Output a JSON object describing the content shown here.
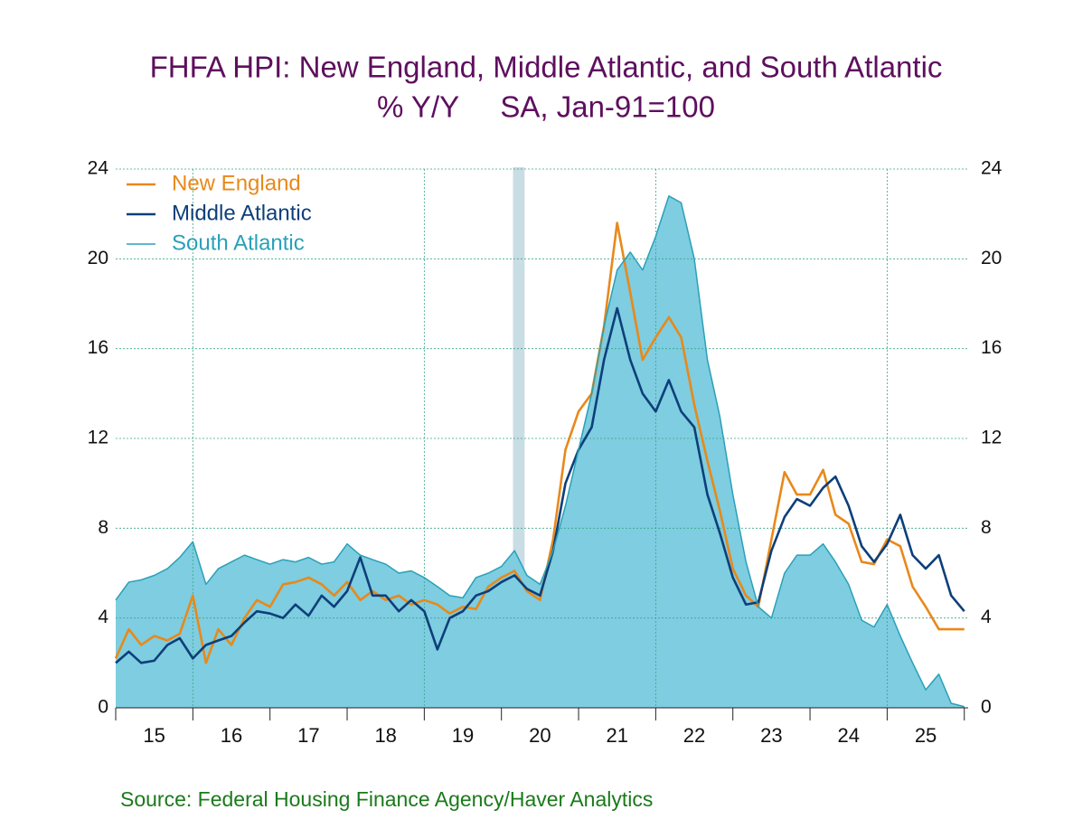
{
  "chart_data": {
    "type": "line",
    "title": "FHFA HPI: New England, Middle Atlantic, and South Atlantic",
    "subtitle": "% Y/Y     SA, Jan-91=100",
    "source": "Source:  Federal Housing Finance Agency/Haver Analytics",
    "x": [
      2015,
      2015.17,
      2015.33,
      2015.5,
      2015.67,
      2015.83,
      2016,
      2016.17,
      2016.33,
      2016.5,
      2016.67,
      2016.83,
      2017,
      2017.17,
      2017.33,
      2017.5,
      2017.67,
      2017.83,
      2018,
      2018.17,
      2018.33,
      2018.5,
      2018.67,
      2018.83,
      2019,
      2019.17,
      2019.33,
      2019.5,
      2019.67,
      2019.83,
      2020,
      2020.17,
      2020.33,
      2020.5,
      2020.67,
      2020.83,
      2021,
      2021.17,
      2021.33,
      2021.5,
      2021.67,
      2021.83,
      2022,
      2022.17,
      2022.33,
      2022.5,
      2022.67,
      2022.83,
      2023,
      2023.17,
      2023.33,
      2023.5,
      2023.67,
      2023.83,
      2024,
      2024.17,
      2024.33,
      2024.5,
      2024.67,
      2024.83,
      2025,
      2025.17,
      2025.33,
      2025.5,
      2025.67,
      2025.83,
      2026
    ],
    "series": [
      {
        "name": "New England",
        "color": "#e8891a",
        "values": [
          2.2,
          3.5,
          2.8,
          3.2,
          3.0,
          3.3,
          5.0,
          2.0,
          3.5,
          2.8,
          4.0,
          4.8,
          4.5,
          5.5,
          5.6,
          5.8,
          5.5,
          5.0,
          5.6,
          4.8,
          5.2,
          4.8,
          5.0,
          4.6,
          4.8,
          4.6,
          4.2,
          4.5,
          4.4,
          5.4,
          5.8,
          6.1,
          5.2,
          4.8,
          7.5,
          11.5,
          13.2,
          14.0,
          17.0,
          21.6,
          18.5,
          15.5,
          16.5,
          17.4,
          16.5,
          13.5,
          11.0,
          8.8,
          6.2,
          5.0,
          4.5,
          7.5,
          10.5,
          9.5,
          9.5,
          10.6,
          8.6,
          8.2,
          6.5,
          6.4,
          7.5,
          7.2,
          5.4,
          4.5,
          3.5,
          3.5,
          3.5
        ]
      },
      {
        "name": "Middle Atlantic",
        "color": "#0d3f7a",
        "values": [
          2.0,
          2.5,
          2.0,
          2.1,
          2.8,
          3.1,
          2.2,
          2.8,
          3.0,
          3.2,
          3.8,
          4.3,
          4.2,
          4.0,
          4.6,
          4.1,
          5.0,
          4.5,
          5.2,
          6.7,
          5.0,
          5.0,
          4.3,
          4.8,
          4.3,
          2.6,
          4.0,
          4.3,
          5.0,
          5.2,
          5.6,
          5.9,
          5.3,
          5.0,
          7.0,
          10.0,
          11.5,
          12.5,
          15.5,
          17.8,
          15.5,
          14.0,
          13.2,
          14.6,
          13.2,
          12.5,
          9.5,
          7.8,
          5.8,
          4.6,
          4.7,
          7.0,
          8.5,
          9.3,
          9.0,
          9.8,
          10.3,
          9.0,
          7.2,
          6.5,
          7.3,
          8.6,
          6.8,
          6.2,
          6.8,
          5.0,
          4.3
        ]
      },
      {
        "name": "South Atlantic",
        "color": "#2aa0b8",
        "fill": "#7ecde0",
        "values": [
          4.8,
          5.6,
          5.7,
          5.9,
          6.2,
          6.7,
          7.4,
          5.5,
          6.2,
          6.5,
          6.8,
          6.6,
          6.4,
          6.6,
          6.5,
          6.7,
          6.4,
          6.5,
          7.3,
          6.8,
          6.6,
          6.4,
          6.0,
          6.1,
          5.8,
          5.4,
          5.0,
          4.9,
          5.8,
          6.0,
          6.3,
          7.0,
          5.9,
          5.5,
          7.0,
          9.0,
          11.5,
          14.0,
          17.0,
          19.5,
          20.3,
          19.5,
          21.0,
          22.8,
          22.5,
          20.0,
          15.5,
          13.0,
          9.5,
          6.5,
          4.5,
          4.0,
          6.0,
          6.8,
          6.8,
          7.3,
          6.5,
          5.5,
          3.9,
          3.6,
          4.6,
          3.2,
          2.0,
          0.8,
          1.5,
          0.2,
          0.05
        ]
      }
    ],
    "xlim": [
      2015,
      2026.05
    ],
    "xticks": [
      2015,
      2016,
      2017,
      2018,
      2019,
      2020,
      2021,
      2022,
      2023,
      2024,
      2025,
      2026
    ],
    "xgrid": [
      2016,
      2019,
      2022,
      2025
    ],
    "year_labels": [
      {
        "value": 2015.5,
        "label": "15"
      },
      {
        "value": 2016.5,
        "label": "16"
      },
      {
        "value": 2017.5,
        "label": "17"
      },
      {
        "value": 2018.5,
        "label": "18"
      },
      {
        "value": 2019.5,
        "label": "19"
      },
      {
        "value": 2020.5,
        "label": "20"
      },
      {
        "value": 2021.5,
        "label": "21"
      },
      {
        "value": 2022.5,
        "label": "22"
      },
      {
        "value": 2023.5,
        "label": "23"
      },
      {
        "value": 2024.5,
        "label": "24"
      },
      {
        "value": 2025.5,
        "label": "25"
      }
    ],
    "recession": [
      2020.15,
      2020.3
    ],
    "ylim": [
      0,
      24
    ],
    "yticks": [
      0,
      4,
      8,
      12,
      16,
      20,
      24
    ],
    "y2lim": [
      0,
      24
    ],
    "y2ticks": [
      0,
      4,
      8,
      12,
      16,
      20,
      24
    ],
    "grid": true,
    "legend": "top-left"
  }
}
